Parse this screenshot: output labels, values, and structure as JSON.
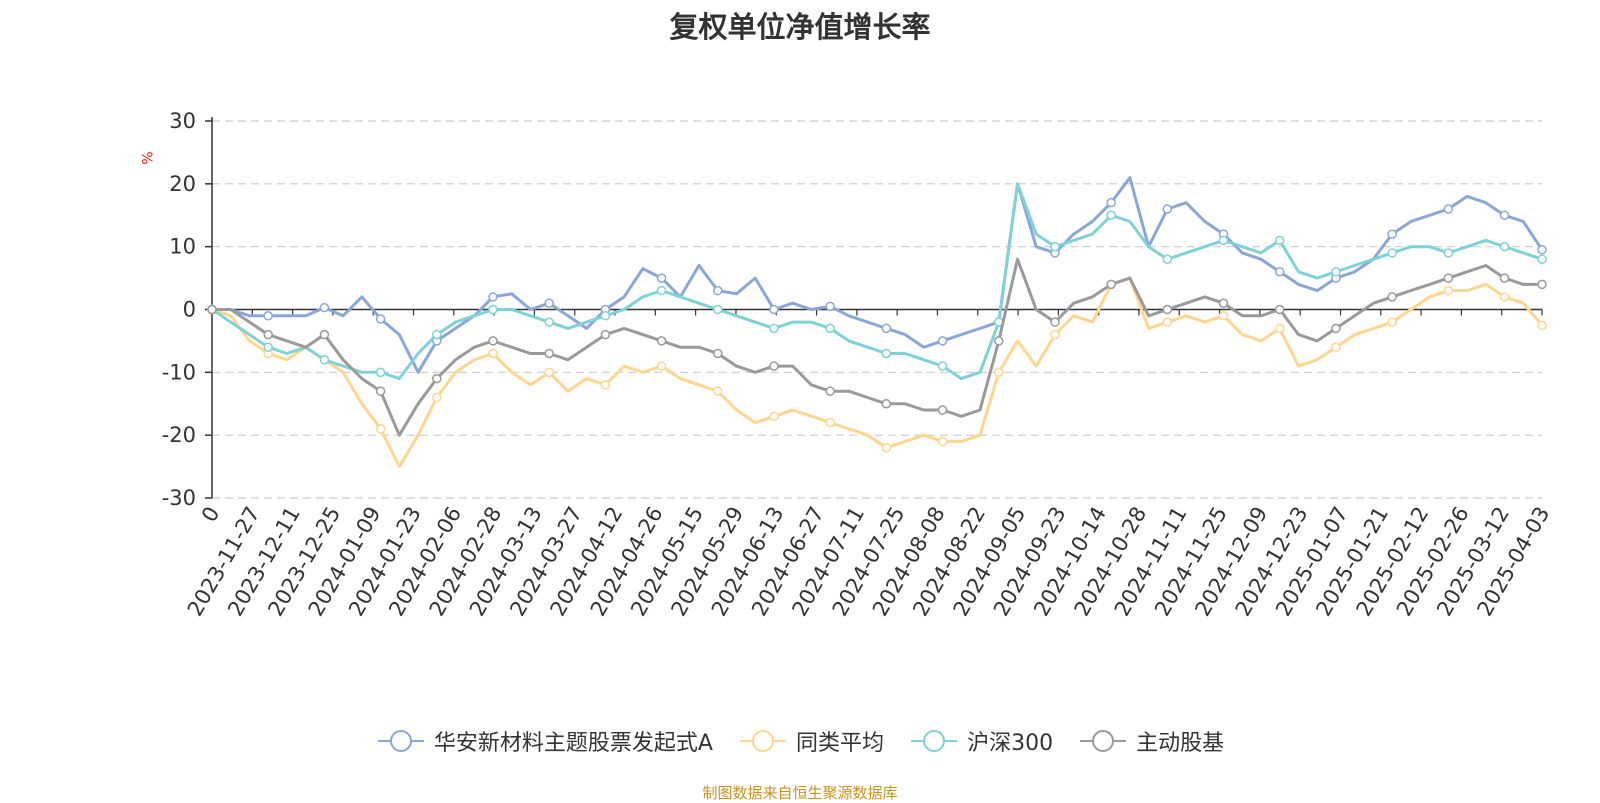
{
  "title": "复权单位净值增长率",
  "unit_label": "%",
  "source": "制图数据来自恒生聚源数据库",
  "colors": {
    "series_a": "#8ba7d7",
    "peer_avg": "#ffd690",
    "hs300": "#7fd2d6",
    "active_equity": "#9a9a9a",
    "axis": "#333333",
    "grid": "#cccccc",
    "source": "#c8951e"
  },
  "chart_data": {
    "type": "line",
    "title": "复权单位净值增长率",
    "ylabel": "%",
    "ylim": [
      -30,
      30
    ],
    "yticks": [
      30,
      20,
      10,
      0,
      -10,
      -20,
      -30
    ],
    "grid": true,
    "legend_position": "bottom",
    "x_tick_labels": [
      "0",
      "2023-11-27",
      "2023-12-11",
      "2023-12-25",
      "2024-01-09",
      "2024-01-23",
      "2024-02-06",
      "2024-02-28",
      "2024-03-13",
      "2024-03-27",
      "2024-04-12",
      "2024-04-26",
      "2024-05-15",
      "2024-05-29",
      "2024-06-13",
      "2024-06-27",
      "2024-07-11",
      "2024-07-25",
      "2024-08-08",
      "2024-08-22",
      "2024-09-05",
      "2024-09-23",
      "2024-10-14",
      "2024-10-28",
      "2024-11-11",
      "2024-11-25",
      "2024-12-09",
      "2024-12-23",
      "2025-01-07",
      "2025-01-21",
      "2025-02-12",
      "2025-02-26",
      "2025-03-12",
      "2025-04-03"
    ],
    "series": [
      {
        "name": "华安新材料主题股票发起式A",
        "color": "#8ba7d7",
        "values": [
          0,
          0,
          -1,
          -1,
          -1,
          -1,
          0.3,
          -1,
          2,
          -1.5,
          -4,
          -10,
          -5,
          -3,
          -1,
          2,
          2.5,
          0,
          1,
          -1,
          -3,
          0,
          2,
          6.5,
          5,
          2,
          7,
          3,
          2.5,
          5,
          0,
          1,
          0,
          0.5,
          -1,
          -2,
          -3,
          -4,
          -6,
          -5,
          -4,
          -3,
          -2,
          20,
          10,
          9,
          12,
          14,
          17,
          21,
          10,
          16,
          17,
          14,
          12,
          9,
          8,
          6,
          4,
          3,
          5,
          6,
          8,
          12,
          14,
          15,
          16,
          18,
          17,
          15,
          14,
          9.5
        ]
      },
      {
        "name": "同类平均",
        "color": "#ffd690",
        "values": [
          0,
          -1,
          -5,
          -7,
          -8,
          -6,
          -8,
          -10,
          -15,
          -19,
          -25,
          -20,
          -14,
          -10,
          -8,
          -7,
          -10,
          -12,
          -10,
          -13,
          -11,
          -12,
          -9,
          -10,
          -9,
          -11,
          -12,
          -13,
          -16,
          -18,
          -17,
          -16,
          -17,
          -18,
          -19,
          -20,
          -22,
          -21,
          -20,
          -21,
          -21,
          -20,
          -10,
          -5,
          -9,
          -4,
          -1,
          -2,
          4,
          5,
          -3,
          -2,
          -1,
          -2,
          -1,
          -4,
          -5,
          -3,
          -9,
          -8,
          -6,
          -4,
          -3,
          -2,
          0,
          2,
          3,
          3,
          4,
          2,
          1,
          -2.5
        ]
      },
      {
        "name": "沪深300",
        "color": "#7fd2d6",
        "values": [
          0,
          -2,
          -4,
          -6,
          -7,
          -6,
          -8,
          -9,
          -10,
          -10,
          -11,
          -7,
          -4,
          -2,
          -1,
          0,
          0,
          -1,
          -2,
          -3,
          -2,
          -1,
          0,
          2,
          3,
          2,
          1,
          0,
          -1,
          -2,
          -3,
          -2,
          -2,
          -3,
          -5,
          -6,
          -7,
          -7,
          -8,
          -9,
          -11,
          -10,
          -2,
          20,
          12,
          10,
          11,
          12,
          15,
          14,
          10,
          8,
          9,
          10,
          11,
          10,
          9,
          11,
          6,
          5,
          6,
          7,
          8,
          9,
          10,
          10,
          9,
          10,
          11,
          10,
          9,
          8
        ]
      },
      {
        "name": "主动股基",
        "color": "#9a9a9a",
        "values": [
          0,
          0,
          -2,
          -4,
          -5,
          -6,
          -4,
          -8,
          -11,
          -13,
          -20,
          -15,
          -11,
          -8,
          -6,
          -5,
          -6,
          -7,
          -7,
          -8,
          -6,
          -4,
          -3,
          -4,
          -5,
          -6,
          -6,
          -7,
          -9,
          -10,
          -9,
          -9,
          -12,
          -13,
          -13,
          -14,
          -15,
          -15,
          -16,
          -16,
          -17,
          -16,
          -5,
          8,
          0,
          -2,
          1,
          2,
          4,
          5,
          -1,
          0,
          1,
          2,
          1,
          -1,
          -1,
          0,
          -4,
          -5,
          -3,
          -1,
          1,
          2,
          3,
          4,
          5,
          6,
          7,
          5,
          4,
          4
        ]
      }
    ]
  }
}
